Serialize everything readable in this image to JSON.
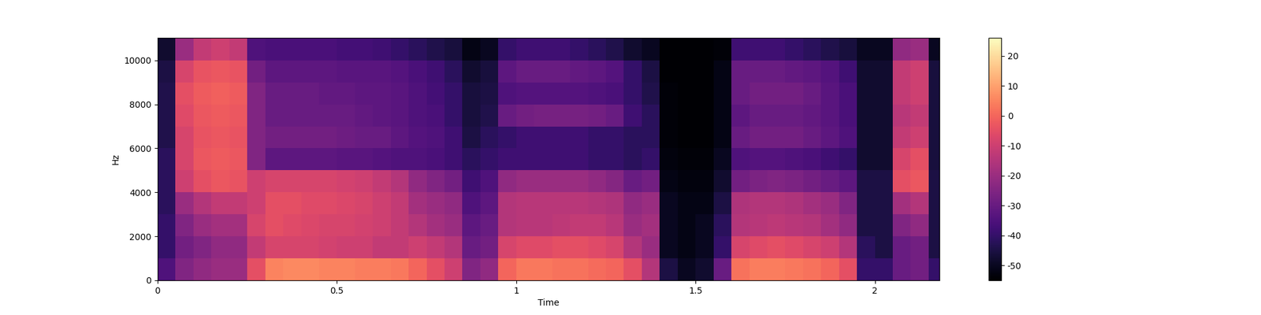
{
  "chart_data": {
    "type": "heatmap",
    "x_label": "Time",
    "y_label": "Hz",
    "color": "magma",
    "x": [
      0,
      0.05,
      0.1,
      0.15,
      0.2,
      0.25,
      0.3,
      0.35,
      0.4,
      0.45,
      0.5,
      0.55,
      0.6,
      0.65,
      0.7,
      0.75,
      0.8,
      0.85,
      0.9,
      0.95,
      1.0,
      1.05,
      1.1,
      1.15,
      1.2,
      1.25,
      1.3,
      1.35,
      1.4,
      1.45,
      1.5,
      1.55,
      1.6,
      1.65,
      1.7,
      1.75,
      1.8,
      1.85,
      1.9,
      1.95,
      2.0,
      2.05,
      2.1,
      2.15,
      2.2
    ],
    "y": [
      0,
      1000,
      2000,
      3000,
      4000,
      5000,
      6000,
      7000,
      8000,
      9000,
      10000,
      11025
    ],
    "cells": [
      [
        -35,
        -25,
        -22,
        -20,
        -20,
        -5,
        5,
        6,
        6,
        5,
        5,
        4,
        4,
        3,
        0,
        -5,
        -10,
        -25,
        -22,
        0,
        3,
        3,
        2,
        2,
        1,
        0,
        -5,
        -15,
        -45,
        -50,
        -48,
        -30,
        2,
        4,
        4,
        3,
        2,
        0,
        -5,
        -40,
        -40,
        -30,
        -28,
        -40
      ],
      [
        -40,
        -28,
        -25,
        -22,
        -22,
        -12,
        -8,
        -8,
        -8,
        -9,
        -10,
        -10,
        -12,
        -12,
        -10,
        -12,
        -15,
        -30,
        -28,
        -8,
        -6,
        -6,
        -5,
        -5,
        -6,
        -8,
        -15,
        -20,
        -50,
        -52,
        -50,
        -40,
        -8,
        -6,
        -5,
        -6,
        -8,
        -10,
        -15,
        -42,
        -45,
        -30,
        -28,
        -45
      ],
      [
        -40,
        -25,
        -20,
        -18,
        -18,
        -8,
        -5,
        -6,
        -7,
        -8,
        -8,
        -9,
        -10,
        -12,
        -15,
        -18,
        -20,
        -32,
        -30,
        -15,
        -14,
        -14,
        -13,
        -12,
        -12,
        -14,
        -20,
        -18,
        -50,
        -52,
        -50,
        -42,
        -15,
        -14,
        -13,
        -14,
        -15,
        -18,
        -22,
        -45,
        -45,
        -25,
        -22,
        -45
      ],
      [
        -42,
        -20,
        -15,
        -12,
        -12,
        -10,
        -5,
        -5,
        -6,
        -6,
        -7,
        -8,
        -10,
        -12,
        -18,
        -20,
        -22,
        -35,
        -32,
        -15,
        -14,
        -14,
        -14,
        -14,
        -15,
        -16,
        -22,
        -20,
        -50,
        -52,
        -52,
        -45,
        -16,
        -15,
        -15,
        -16,
        -18,
        -20,
        -25,
        -45,
        -45,
        -18,
        -15,
        -45
      ],
      [
        -42,
        -10,
        -5,
        -3,
        -4,
        -10,
        -8,
        -8,
        -8,
        -8,
        -9,
        -10,
        -12,
        -15,
        -22,
        -25,
        -28,
        -38,
        -35,
        -22,
        -20,
        -20,
        -20,
        -20,
        -22,
        -24,
        -30,
        -28,
        -52,
        -53,
        -53,
        -48,
        -28,
        -26,
        -25,
        -26,
        -28,
        -30,
        -32,
        -45,
        -45,
        -5,
        -3,
        -45
      ],
      [
        -42,
        -8,
        -3,
        -2,
        -3,
        -25,
        -32,
        -32,
        -32,
        -32,
        -33,
        -33,
        -34,
        -35,
        -35,
        -36,
        -38,
        -42,
        -40,
        -38,
        -38,
        -38,
        -38,
        -38,
        -40,
        -40,
        -42,
        -40,
        -53,
        -54,
        -54,
        -50,
        -35,
        -34,
        -34,
        -35,
        -36,
        -38,
        -40,
        -48,
        -48,
        -8,
        -5,
        -46
      ],
      [
        -44,
        -8,
        -4,
        -3,
        -4,
        -25,
        -28,
        -28,
        -28,
        -28,
        -29,
        -30,
        -30,
        -32,
        -34,
        -35,
        -38,
        -45,
        -42,
        -40,
        -38,
        -38,
        -38,
        -38,
        -40,
        -40,
        -42,
        -42,
        -54,
        -55,
        -55,
        -52,
        -30,
        -28,
        -28,
        -28,
        -30,
        -32,
        -35,
        -48,
        -48,
        -12,
        -10,
        -46
      ],
      [
        -44,
        -6,
        -3,
        -2,
        -3,
        -25,
        -30,
        -30,
        -30,
        -30,
        -30,
        -31,
        -32,
        -33,
        -35,
        -36,
        -40,
        -46,
        -44,
        -30,
        -28,
        -27,
        -27,
        -27,
        -28,
        -30,
        -38,
        -42,
        -54,
        -55,
        -55,
        -52,
        -32,
        -30,
        -30,
        -30,
        -31,
        -33,
        -36,
        -48,
        -48,
        -14,
        -12,
        -46
      ],
      [
        -44,
        -5,
        -2,
        -1,
        -2,
        -25,
        -30,
        -30,
        -30,
        -31,
        -31,
        -32,
        -32,
        -33,
        -35,
        -37,
        -40,
        -46,
        -45,
        -35,
        -34,
        -34,
        -34,
        -34,
        -35,
        -36,
        -40,
        -44,
        -54,
        -55,
        -55,
        -52,
        -30,
        -28,
        -28,
        -28,
        -30,
        -33,
        -36,
        -48,
        -48,
        -12,
        -10,
        -46
      ],
      [
        -45,
        -8,
        -4,
        -3,
        -4,
        -28,
        -32,
        -32,
        -32,
        -32,
        -33,
        -33,
        -33,
        -34,
        -36,
        -38,
        -42,
        -48,
        -46,
        -32,
        -30,
        -30,
        -30,
        -31,
        -32,
        -34,
        -40,
        -45,
        -55,
        -55,
        -55,
        -52,
        -30,
        -30,
        -30,
        -31,
        -32,
        -34,
        -38,
        -48,
        -48,
        -12,
        -10,
        -46
      ],
      [
        -48,
        -20,
        -12,
        -10,
        -12,
        -35,
        -36,
        -36,
        -36,
        -36,
        -37,
        -37,
        -38,
        -40,
        -42,
        -44,
        -46,
        -52,
        -50,
        -40,
        -38,
        -38,
        -38,
        -40,
        -42,
        -44,
        -48,
        -50,
        -55,
        -55,
        -55,
        -54,
        -38,
        -38,
        -38,
        -40,
        -42,
        -44,
        -46,
        -50,
        -50,
        -22,
        -20,
        -50
      ]
    ],
    "xlim": [
      0,
      2.18
    ],
    "xticks": [
      0,
      0.5,
      1,
      1.5,
      2
    ],
    "ylim": [
      0,
      11025
    ],
    "yticks": [
      0,
      2000,
      4000,
      6000,
      8000,
      10000
    ],
    "colorbar_range": [
      -55,
      26
    ],
    "colorbar_ticks": [
      -50,
      -40,
      -30,
      -20,
      -10,
      0,
      10,
      20
    ]
  }
}
